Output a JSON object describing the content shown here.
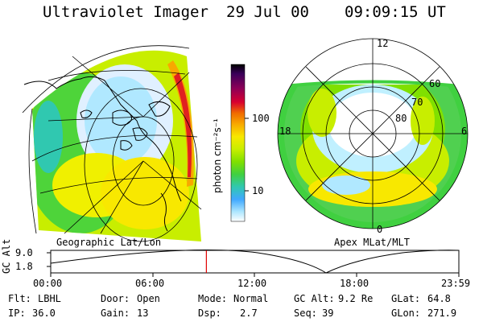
{
  "header": {
    "instrument": "Ultraviolet Imager",
    "date": "29 Jul 00",
    "time": "09:09:15 UT"
  },
  "left_panel": {
    "caption": "Geographic Lat/Lon"
  },
  "right_panel": {
    "caption": "Apex MLat/MLT",
    "mlt_labels": [
      "12",
      "18",
      "6",
      "0"
    ],
    "mlat_labels": [
      "60",
      "70",
      "80"
    ]
  },
  "colorbar": {
    "unit_label": "photon cm⁻²s⁻¹",
    "ticks": [
      "100",
      "10"
    ],
    "colors": [
      "#000000",
      "#3a005a",
      "#8a0058",
      "#d80030",
      "#f06a00",
      "#f8a800",
      "#f8e800",
      "#c8ee00",
      "#80e000",
      "#40d040",
      "#30c8b0",
      "#40a8ff",
      "#b0e8ff",
      "#ffffff"
    ]
  },
  "altitude_plot": {
    "ylabel": "GC Alt",
    "yticks": [
      "9.0",
      "1.8"
    ],
    "xticks": [
      "00:00",
      "06:00",
      "12:00",
      "18:00",
      "23:59"
    ],
    "marker_time_fraction": 0.3814,
    "marker_color": "#e00000"
  },
  "status": {
    "filter_label": "Flt:",
    "filter": "LBHL",
    "ip_label": "IP:",
    "ip": "36.0",
    "door_label": "Door:",
    "door": "Open",
    "gain_label": "Gain:",
    "gain": "13",
    "mode_label": "Mode:",
    "mode": "Normal",
    "dsp_label": "Dsp:",
    "dsp": "2.7",
    "gcalt_label": "GC Alt:",
    "gcalt": "9.2 Re",
    "seq_label": "Seq:",
    "seq": "39",
    "glat_label": "GLat:",
    "glat": "64.8",
    "glon_label": "GLon:",
    "glon": "271.9"
  }
}
